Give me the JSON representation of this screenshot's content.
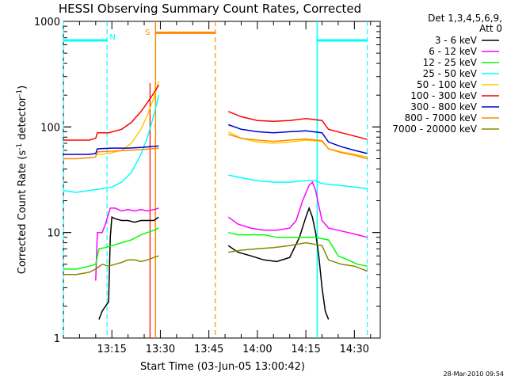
{
  "chart_data": {
    "type": "line",
    "title": "HESSI Observing Summary Count Rates, Corrected",
    "xlabel": "Start Time (03-Jun-05 13:00:42)",
    "ylabel": "Corrected Count Rate (s⁻¹ detector⁻¹)",
    "ylabel_main": "Corrected Count Rate (s",
    "ylabel_sup1": "-1",
    "ylabel_mid": " detector",
    "ylabel_sup2": "-1",
    "ylabel_end": ")",
    "y_scale": "log",
    "ylim": [
      1,
      1000
    ],
    "xlim_minutes": [
      0,
      98
    ],
    "x_ticks": [
      {
        "label": "13:15",
        "min": 15
      },
      {
        "label": "13:30",
        "min": 30
      },
      {
        "label": "13:45",
        "min": 45
      },
      {
        "label": "14:00",
        "min": 60
      },
      {
        "label": "14:15",
        "min": 75
      },
      {
        "label": "14:30",
        "min": 90
      }
    ],
    "y_ticks": [
      {
        "label": "1",
        "value": 1
      },
      {
        "label": "10",
        "value": 10
      },
      {
        "label": "100",
        "value": 100
      },
      {
        "label": "1000",
        "value": 1000
      }
    ],
    "legend": {
      "header1": "Det 1,3,4,5,6,9,",
      "header2": "Att 0",
      "position": "right"
    },
    "series": [
      {
        "name": "3 - 6 keV",
        "color": "#000000",
        "a": [
          [
            11,
            1.5
          ],
          [
            12,
            1.8
          ],
          [
            13,
            2.0
          ],
          [
            14,
            2.2
          ],
          [
            14.5,
            9
          ],
          [
            15,
            14
          ],
          [
            16,
            13.5
          ],
          [
            18,
            13
          ],
          [
            20,
            13
          ],
          [
            22,
            12.5
          ],
          [
            24,
            13
          ],
          [
            26,
            13
          ],
          [
            28,
            13
          ],
          [
            29.5,
            14
          ]
        ],
        "b": [
          [
            51,
            7.5
          ],
          [
            54,
            6.5
          ],
          [
            58,
            6
          ],
          [
            62,
            5.5
          ],
          [
            66,
            5.3
          ],
          [
            70,
            5.8
          ],
          [
            73,
            9
          ],
          [
            75,
            14
          ],
          [
            76,
            17
          ],
          [
            77,
            14
          ],
          [
            78,
            10
          ],
          [
            79,
            6
          ],
          [
            80,
            3
          ],
          [
            81,
            1.8
          ],
          [
            82,
            1.5
          ]
        ]
      },
      {
        "name": "6 - 12 keV",
        "color": "#ff00ff",
        "a": [
          [
            10,
            3.5
          ],
          [
            10.5,
            10
          ],
          [
            12,
            10
          ],
          [
            13,
            12
          ],
          [
            14.5,
            17
          ],
          [
            16,
            17
          ],
          [
            18,
            16
          ],
          [
            20,
            16.5
          ],
          [
            22,
            16
          ],
          [
            24,
            16.5
          ],
          [
            26,
            16
          ],
          [
            28,
            16.5
          ],
          [
            29.5,
            17
          ]
        ],
        "b": [
          [
            51,
            14
          ],
          [
            54,
            12
          ],
          [
            58,
            11
          ],
          [
            62,
            10.5
          ],
          [
            66,
            10.5
          ],
          [
            70,
            11
          ],
          [
            72,
            13
          ],
          [
            74,
            20
          ],
          [
            76,
            28
          ],
          [
            77,
            30
          ],
          [
            78,
            25
          ],
          [
            79,
            18
          ],
          [
            80,
            13
          ],
          [
            82,
            11
          ],
          [
            85,
            10.5
          ],
          [
            88,
            10
          ],
          [
            91,
            9.5
          ],
          [
            94,
            9
          ]
        ]
      },
      {
        "name": "12 - 25 keV",
        "color": "#00ff00",
        "a": [
          [
            0,
            4.5
          ],
          [
            4,
            4.5
          ],
          [
            8,
            4.8
          ],
          [
            10,
            5
          ],
          [
            11,
            7
          ],
          [
            13,
            7.2
          ],
          [
            15,
            7.5
          ],
          [
            18,
            8
          ],
          [
            21,
            8.5
          ],
          [
            24,
            9.5
          ],
          [
            26,
            10
          ],
          [
            28,
            10.5
          ],
          [
            29.5,
            11
          ]
        ],
        "b": [
          [
            51,
            10
          ],
          [
            54,
            9.5
          ],
          [
            58,
            9.5
          ],
          [
            62,
            9.5
          ],
          [
            66,
            9
          ],
          [
            70,
            9
          ],
          [
            74,
            9
          ],
          [
            78,
            9
          ],
          [
            82,
            8.5
          ],
          [
            85,
            6
          ],
          [
            88,
            5.5
          ],
          [
            91,
            5
          ],
          [
            94,
            4.8
          ]
        ]
      },
      {
        "name": "25 - 50 keV",
        "color": "#00ffff",
        "a": [
          [
            0,
            25
          ],
          [
            4,
            24
          ],
          [
            8,
            25
          ],
          [
            10,
            25.5
          ],
          [
            12,
            26
          ],
          [
            15,
            27
          ],
          [
            18,
            30
          ],
          [
            21,
            37
          ],
          [
            24,
            55
          ],
          [
            26,
            80
          ],
          [
            28,
            130
          ],
          [
            29.5,
            200
          ]
        ],
        "b": [
          [
            51,
            35
          ],
          [
            55,
            33
          ],
          [
            60,
            31
          ],
          [
            65,
            30
          ],
          [
            70,
            30
          ],
          [
            75,
            31
          ],
          [
            78,
            31
          ],
          [
            80,
            29
          ],
          [
            85,
            28
          ],
          [
            90,
            27
          ],
          [
            94,
            26
          ]
        ]
      },
      {
        "name": "50 - 100 keV",
        "color": "#ffcc00",
        "a": [
          [
            10,
            55
          ],
          [
            12,
            55
          ],
          [
            15,
            57
          ],
          [
            18,
            60
          ],
          [
            21,
            70
          ],
          [
            24,
            95
          ],
          [
            26,
            130
          ],
          [
            28,
            190
          ],
          [
            29.5,
            270
          ]
        ],
        "b": [
          [
            51,
            90
          ],
          [
            55,
            78
          ],
          [
            60,
            72
          ],
          [
            65,
            70
          ],
          [
            70,
            72
          ],
          [
            75,
            75
          ],
          [
            80,
            73
          ],
          [
            82,
            62
          ],
          [
            86,
            58
          ],
          [
            90,
            55
          ],
          [
            94,
            52
          ]
        ]
      },
      {
        "name": "100 - 300 keV",
        "color": "#ff0000",
        "a": [
          [
            0,
            75
          ],
          [
            4,
            75
          ],
          [
            8,
            75
          ],
          [
            10,
            78
          ],
          [
            10.5,
            88
          ],
          [
            14,
            88
          ],
          [
            18,
            95
          ],
          [
            21,
            110
          ],
          [
            24,
            140
          ],
          [
            26,
            170
          ],
          [
            28,
            210
          ],
          [
            29.5,
            250
          ]
        ],
        "b": [
          [
            51,
            140
          ],
          [
            55,
            125
          ],
          [
            60,
            115
          ],
          [
            65,
            113
          ],
          [
            70,
            115
          ],
          [
            75,
            120
          ],
          [
            80,
            115
          ],
          [
            82,
            95
          ],
          [
            86,
            88
          ],
          [
            90,
            82
          ],
          [
            94,
            76
          ]
        ]
      },
      {
        "name": "300 - 800 keV",
        "color": "#0000cc",
        "a": [
          [
            0,
            55
          ],
          [
            4,
            55
          ],
          [
            8,
            55
          ],
          [
            10,
            56
          ],
          [
            10.5,
            62
          ],
          [
            15,
            63
          ],
          [
            20,
            63
          ],
          [
            24,
            64
          ],
          [
            27,
            65
          ],
          [
            29.5,
            66
          ]
        ],
        "b": [
          [
            51,
            105
          ],
          [
            55,
            95
          ],
          [
            60,
            90
          ],
          [
            65,
            88
          ],
          [
            70,
            90
          ],
          [
            75,
            92
          ],
          [
            80,
            88
          ],
          [
            82,
            72
          ],
          [
            86,
            65
          ],
          [
            90,
            60
          ],
          [
            94,
            56
          ]
        ]
      },
      {
        "name": "800 - 7000 keV",
        "color": "#ff8800",
        "a": [
          [
            0,
            50
          ],
          [
            4,
            50
          ],
          [
            8,
            51
          ],
          [
            10,
            52
          ],
          [
            10.5,
            58
          ],
          [
            15,
            59
          ],
          [
            20,
            60
          ],
          [
            24,
            61
          ],
          [
            27,
            62
          ],
          [
            29.5,
            63
          ]
        ],
        "b": [
          [
            51,
            85
          ],
          [
            55,
            78
          ],
          [
            60,
            75
          ],
          [
            65,
            73
          ],
          [
            70,
            75
          ],
          [
            75,
            77
          ],
          [
            80,
            74
          ],
          [
            82,
            62
          ],
          [
            86,
            57
          ],
          [
            90,
            54
          ],
          [
            94,
            50
          ]
        ]
      },
      {
        "name": "7000 - 20000 keV",
        "color": "#888800",
        "a": [
          [
            0,
            4
          ],
          [
            4,
            4
          ],
          [
            8,
            4.2
          ],
          [
            10,
            4.5
          ],
          [
            12,
            5
          ],
          [
            14,
            4.8
          ],
          [
            16,
            5
          ],
          [
            18,
            5.2
          ],
          [
            20,
            5.5
          ],
          [
            22,
            5.5
          ],
          [
            24,
            5.3
          ],
          [
            26,
            5.5
          ],
          [
            28,
            5.8
          ],
          [
            29.5,
            6
          ]
        ],
        "b": [
          [
            51,
            6.5
          ],
          [
            55,
            6.8
          ],
          [
            60,
            7
          ],
          [
            65,
            7.2
          ],
          [
            70,
            7.5
          ],
          [
            75,
            8
          ],
          [
            80,
            7.5
          ],
          [
            82,
            5.5
          ],
          [
            86,
            5
          ],
          [
            90,
            4.8
          ],
          [
            94,
            4.3
          ]
        ]
      }
    ],
    "annotations": {
      "n_label": "N",
      "s_label": "S",
      "night_color": "#00ffff",
      "saa_color": "#ff8800",
      "night_intervals": [
        [
          0,
          13.5
        ],
        [
          78.5,
          94
        ]
      ],
      "night_bars": [
        [
          0,
          13.5
        ],
        [
          78.5,
          94
        ]
      ],
      "saa_interval": [
        28.5,
        47
      ],
      "saa_bar": [
        28.5,
        47
      ],
      "cutoff_red_min": 26.8
    },
    "timestamp": "28-Mar-2010 09:54"
  }
}
